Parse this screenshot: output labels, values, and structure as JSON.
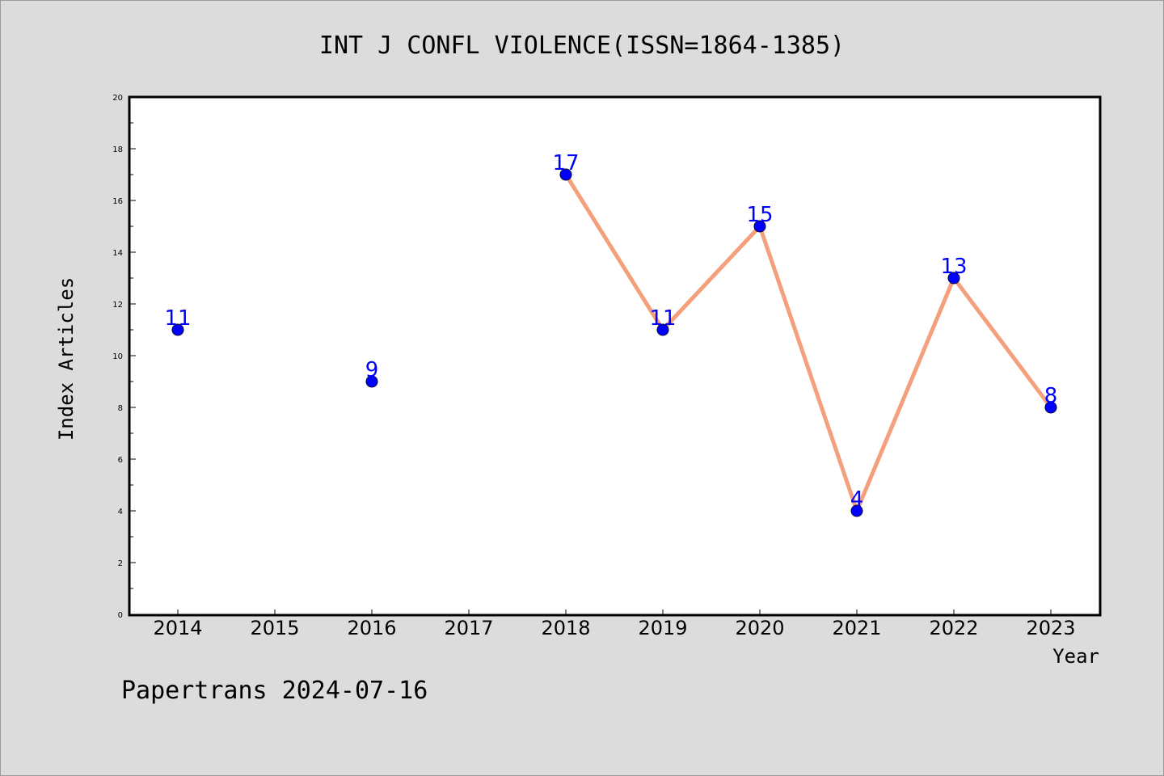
{
  "chart_data": {
    "type": "line",
    "title": "INT J CONFL VIOLENCE(ISSN=1864-1385)",
    "xlabel": "Year",
    "ylabel": "Index Articles",
    "categories": [
      "2014",
      "2015",
      "2016",
      "2017",
      "2018",
      "2019",
      "2020",
      "2021",
      "2022",
      "2023"
    ],
    "points": [
      {
        "x": "2014",
        "y": 11
      },
      {
        "x": "2016",
        "y": 9
      },
      {
        "x": "2018",
        "y": 17
      },
      {
        "x": "2019",
        "y": 11
      },
      {
        "x": "2020",
        "y": 15
      },
      {
        "x": "2021",
        "y": 4
      },
      {
        "x": "2022",
        "y": 13
      },
      {
        "x": "2023",
        "y": 8
      }
    ],
    "ylim": [
      0,
      20
    ],
    "yticks": [
      0,
      2,
      4,
      6,
      8,
      10,
      12,
      14,
      16,
      18,
      20
    ],
    "grid": false,
    "colors": {
      "line": "#f4a07c",
      "marker": "#0000ff",
      "data_label": "#0000ff"
    }
  },
  "footer": "Papertrans 2024-07-16"
}
